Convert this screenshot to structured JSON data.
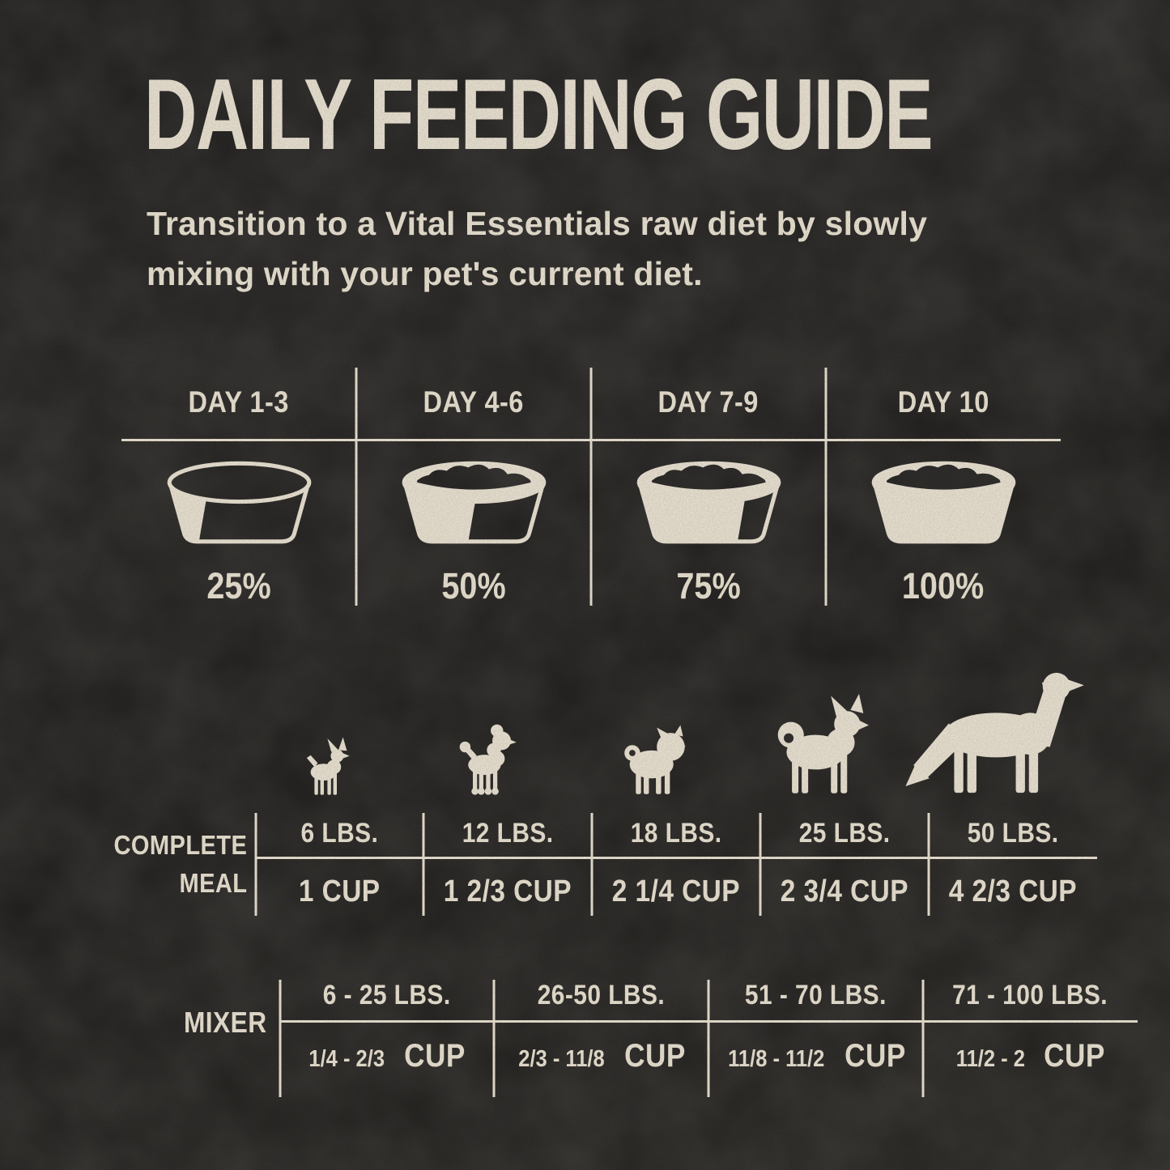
{
  "title": "DAILY FEEDING GUIDE",
  "subtitle_lines": [
    "Transition to a Vital Essentials raw diet by slowly",
    "mixing with your pet's current diet."
  ],
  "colors": {
    "background": "#242220",
    "text": "#ece4d3"
  },
  "transition": {
    "columns": [
      {
        "day": "DAY 1-3",
        "percent": "25%",
        "bowl_fill": 0.25,
        "bowl_has_food": false
      },
      {
        "day": "DAY 4-6",
        "percent": "50%",
        "bowl_fill": 0.5,
        "bowl_has_food": true
      },
      {
        "day": "DAY 7-9",
        "percent": "75%",
        "bowl_fill": 0.75,
        "bowl_has_food": true
      },
      {
        "day": "DAY 10",
        "percent": "100%",
        "bowl_fill": 1,
        "bowl_has_food": true
      }
    ]
  },
  "dogs": [
    {
      "breed": "chihuahua"
    },
    {
      "breed": "poodle"
    },
    {
      "breed": "pug"
    },
    {
      "breed": "shiba"
    },
    {
      "breed": "retriever"
    }
  ],
  "complete_meal": {
    "label_lines": [
      "COMPLETE",
      "MEAL"
    ],
    "columns": [
      {
        "weight": "6 LBS.",
        "cup": "1 CUP"
      },
      {
        "weight": "12 LBS.",
        "cup": "1 2/3 CUP"
      },
      {
        "weight": "18 LBS.",
        "cup": "2 1/4 CUP"
      },
      {
        "weight": "25 LBS.",
        "cup": "2 3/4 CUP"
      },
      {
        "weight": "50 LBS.",
        "cup": "4 2/3 CUP"
      }
    ]
  },
  "mixer": {
    "label": "MIXER",
    "columns": [
      {
        "weight": "6 - 25 LBS.",
        "range": "1/4 - 2/3",
        "cup_word": "CUP"
      },
      {
        "weight": "26-50 LBS.",
        "range": "2/3 - 11/8",
        "cup_word": "CUP"
      },
      {
        "weight": "51 - 70 LBS.",
        "range": "11/8 - 11/2",
        "cup_word": "CUP"
      },
      {
        "weight": "71 - 100 LBS.",
        "range": "11/2 - 2",
        "cup_word": "CUP"
      }
    ]
  }
}
